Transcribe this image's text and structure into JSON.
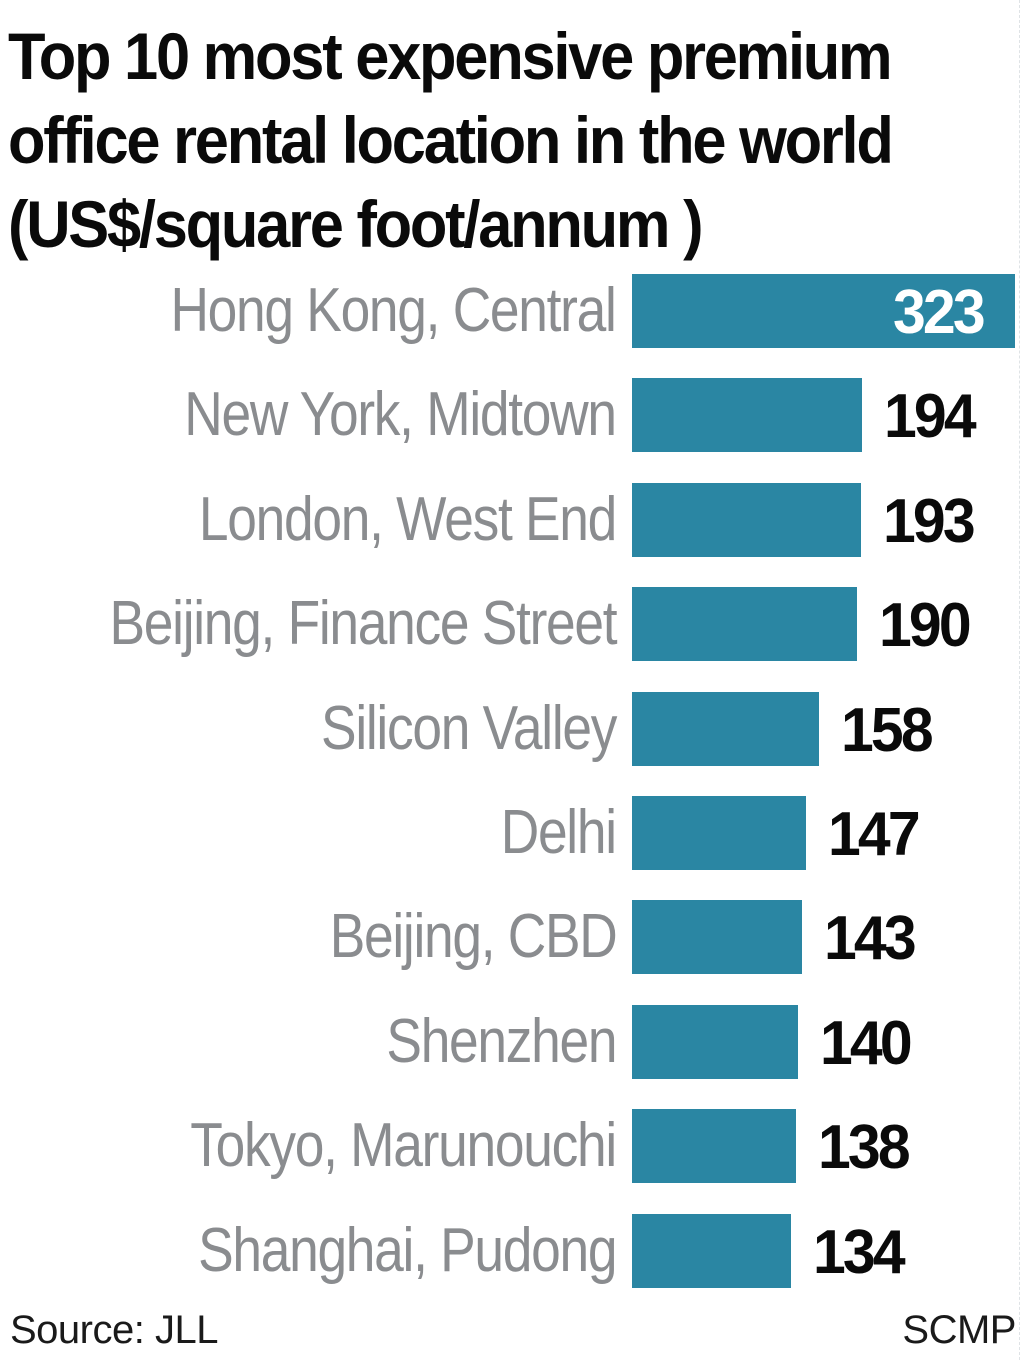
{
  "header": {
    "title_lines": [
      "Top 10 most expensive premium",
      "office rental location in the world",
      "(US$/square foot/annum )"
    ]
  },
  "footer": {
    "source": "Source: JLL",
    "credit": "SCMP"
  },
  "colors": {
    "bar": "#2a86a3",
    "label": "#8a8c8f",
    "value": "#0a0a0a",
    "value_inside": "#ffffff"
  },
  "rows": [
    {
      "label": "Hong Kong, Central",
      "value": "323"
    },
    {
      "label": "New York, Midtown",
      "value": "194"
    },
    {
      "label": "London, West End",
      "value": "193"
    },
    {
      "label": "Beijing, Finance Street",
      "value": "190"
    },
    {
      "label": "Silicon Valley",
      "value": "158"
    },
    {
      "label": "Delhi",
      "value": "147"
    },
    {
      "label": "Beijing, CBD",
      "value": "143"
    },
    {
      "label": "Shenzhen",
      "value": "140"
    },
    {
      "label": "Tokyo, Marunouchi",
      "value": "138"
    },
    {
      "label": "Shanghai, Pudong",
      "value": "134"
    }
  ],
  "chart_data": {
    "type": "bar",
    "orientation": "horizontal",
    "title": "Top 10 most expensive premium office rental location in the world (US$/square foot/annum )",
    "categories": [
      "Hong Kong, Central",
      "New York, Midtown",
      "London, West End",
      "Beijing, Finance Street",
      "Silicon Valley",
      "Delhi",
      "Beijing, CBD",
      "Shenzhen",
      "Tokyo, Marunouchi",
      "Shanghai, Pudong"
    ],
    "values": [
      323,
      194,
      193,
      190,
      158,
      147,
      143,
      140,
      138,
      134
    ],
    "xlabel": "",
    "ylabel": "",
    "unit": "US$/square foot/annum",
    "grid": false,
    "legend": null,
    "data_labels": true,
    "source": "Source: JLL",
    "credit": "SCMP"
  }
}
